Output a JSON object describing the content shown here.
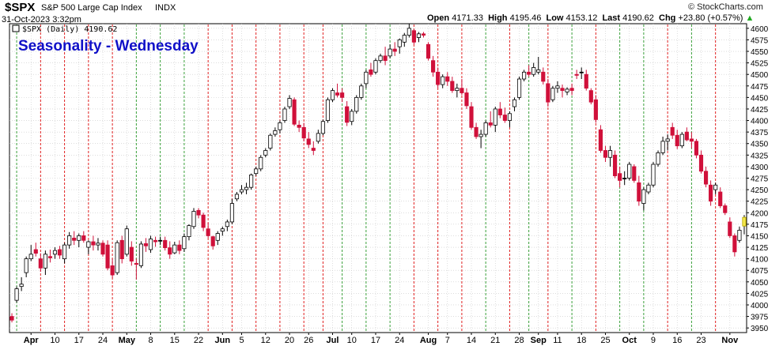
{
  "header": {
    "symbol": "$SPX",
    "name": "S&P 500 Large Cap Index",
    "exchange": "INDX",
    "timestamp": "31-Oct-2023 3:32pm",
    "open_label": "Open",
    "open": "4171.33",
    "high_label": "High",
    "high": "4195.46",
    "low_label": "Low",
    "low": "4153.12",
    "last_label": "Last",
    "last": "4190.62",
    "chg_label": "Chg",
    "chg": "+23.80 (+0.57%)",
    "up_arrow_icon": "triangle-up-icon",
    "watermark": "© StockCharts.com"
  },
  "legend_text": "$SPX (Daily) 4190.62",
  "chart_data": {
    "type": "candlestick",
    "title": "Seasonality - Wednesday",
    "ylim": [
      3940,
      4610
    ],
    "y_ticks": [
      3950,
      3975,
      4000,
      4025,
      4050,
      4075,
      4100,
      4125,
      4150,
      4175,
      4200,
      4225,
      4250,
      4275,
      4300,
      4325,
      4350,
      4375,
      4400,
      4425,
      4450,
      4475,
      4500,
      4525,
      4550,
      4575,
      4600
    ],
    "x_tick_labels": [
      {
        "i": 4,
        "label": "Apr",
        "bold": true
      },
      {
        "i": 9,
        "label": "10"
      },
      {
        "i": 14,
        "label": "17"
      },
      {
        "i": 19,
        "label": "24"
      },
      {
        "i": 24,
        "label": "May",
        "bold": true
      },
      {
        "i": 29,
        "label": "8"
      },
      {
        "i": 34,
        "label": "15"
      },
      {
        "i": 39,
        "label": "22"
      },
      {
        "i": 44,
        "label": "Jun",
        "bold": true
      },
      {
        "i": 48,
        "label": "5"
      },
      {
        "i": 53,
        "label": "12"
      },
      {
        "i": 58,
        "label": "20"
      },
      {
        "i": 62,
        "label": "26"
      },
      {
        "i": 67,
        "label": "Jul",
        "bold": true
      },
      {
        "i": 71,
        "label": "10"
      },
      {
        "i": 76,
        "label": "17"
      },
      {
        "i": 81,
        "label": "24"
      },
      {
        "i": 87,
        "label": "Aug",
        "bold": true
      },
      {
        "i": 91,
        "label": "7"
      },
      {
        "i": 96,
        "label": "14"
      },
      {
        "i": 101,
        "label": "21"
      },
      {
        "i": 106,
        "label": "28"
      },
      {
        "i": 110,
        "label": "Sep",
        "bold": true
      },
      {
        "i": 114,
        "label": "11"
      },
      {
        "i": 119,
        "label": "18"
      },
      {
        "i": 124,
        "label": "25"
      },
      {
        "i": 129,
        "label": "Oct",
        "bold": true
      },
      {
        "i": 134,
        "label": "9"
      },
      {
        "i": 139,
        "label": "16"
      },
      {
        "i": 144,
        "label": "23"
      },
      {
        "i": 150,
        "label": "Nov",
        "bold": true
      }
    ],
    "wednesday_lines": [
      {
        "i": 1,
        "c": "green"
      },
      {
        "i": 6,
        "c": "red"
      },
      {
        "i": 11,
        "c": "red"
      },
      {
        "i": 16,
        "c": "red"
      },
      {
        "i": 21,
        "c": "red"
      },
      {
        "i": 26,
        "c": "green"
      },
      {
        "i": 31,
        "c": "green"
      },
      {
        "i": 36,
        "c": "green"
      },
      {
        "i": 41,
        "c": "red"
      },
      {
        "i": 46,
        "c": "red"
      },
      {
        "i": 51,
        "c": "red"
      },
      {
        "i": 56,
        "c": "red"
      },
      {
        "i": 61,
        "c": "red"
      },
      {
        "i": 65,
        "c": "red"
      },
      {
        "i": 69,
        "c": "green"
      },
      {
        "i": 74,
        "c": "green"
      },
      {
        "i": 79,
        "c": "green"
      },
      {
        "i": 84,
        "c": "red"
      },
      {
        "i": 89,
        "c": "red"
      },
      {
        "i": 94,
        "c": "red"
      },
      {
        "i": 99,
        "c": "green"
      },
      {
        "i": 104,
        "c": "red"
      },
      {
        "i": 108,
        "c": "green"
      },
      {
        "i": 112,
        "c": "red"
      },
      {
        "i": 117,
        "c": "green"
      },
      {
        "i": 122,
        "c": "red"
      },
      {
        "i": 127,
        "c": "green"
      },
      {
        "i": 132,
        "c": "green"
      },
      {
        "i": 137,
        "c": "red"
      },
      {
        "i": 142,
        "c": "green"
      },
      {
        "i": 147,
        "c": "red"
      }
    ],
    "colors": {
      "up": "#ffffff",
      "down": "#d0103a",
      "flat": "#000000",
      "last": "#f2e64a",
      "line_green": "#3aa03a",
      "line_red": "#e02020",
      "title": "#1010c8",
      "grid": "#c8c8c8",
      "axis": "#000000"
    },
    "ohlc": [
      [
        3975,
        3982,
        3962,
        3967
      ],
      [
        4010,
        4040,
        4005,
        4035
      ],
      [
        4040,
        4060,
        4030,
        4045
      ],
      [
        4070,
        4105,
        4060,
        4100
      ],
      [
        4100,
        4130,
        4095,
        4110
      ],
      [
        4120,
        4135,
        4105,
        4112
      ],
      [
        4100,
        4112,
        4072,
        4080
      ],
      [
        4080,
        4118,
        4065,
        4110
      ],
      [
        4105,
        4120,
        4092,
        4102
      ],
      [
        4110,
        4125,
        4100,
        4118
      ],
      [
        4120,
        4128,
        4100,
        4108
      ],
      [
        4100,
        4135,
        4090,
        4130
      ],
      [
        4130,
        4158,
        4122,
        4150
      ],
      [
        4145,
        4160,
        4130,
        4140
      ],
      [
        4140,
        4155,
        4125,
        4150
      ],
      [
        4150,
        4160,
        4135,
        4140
      ],
      [
        4125,
        4140,
        4110,
        4137
      ],
      [
        4137,
        4150,
        4118,
        4130
      ],
      [
        4130,
        4145,
        4118,
        4134
      ],
      [
        4134,
        4140,
        4105,
        4110
      ],
      [
        4130,
        4140,
        4075,
        4080
      ],
      [
        4085,
        4100,
        4058,
        4065
      ],
      [
        4070,
        4140,
        4065,
        4135
      ],
      [
        4140,
        4150,
        4090,
        4100
      ],
      [
        4110,
        4172,
        4105,
        4165
      ],
      [
        4125,
        4138,
        4085,
        4095
      ],
      [
        4090,
        4100,
        4055,
        4088
      ],
      [
        4085,
        4138,
        4080,
        4132
      ],
      [
        4133,
        4145,
        4115,
        4128
      ],
      [
        4120,
        4150,
        4113,
        4143
      ],
      [
        4140,
        4148,
        4126,
        4137
      ],
      [
        4140,
        4148,
        4130,
        4140
      ],
      [
        4140,
        4148,
        4118,
        4124
      ],
      [
        4124,
        4138,
        4100,
        4110
      ],
      [
        4113,
        4137,
        4110,
        4130
      ],
      [
        4130,
        4140,
        4110,
        4118
      ],
      [
        4122,
        4155,
        4115,
        4148
      ],
      [
        4148,
        4175,
        4140,
        4172
      ],
      [
        4170,
        4210,
        4165,
        4203
      ],
      [
        4205,
        4210,
        4188,
        4195
      ],
      [
        4195,
        4200,
        4160,
        4168
      ],
      [
        4165,
        4178,
        4145,
        4150
      ],
      [
        4148,
        4150,
        4120,
        4128
      ],
      [
        4140,
        4160,
        4130,
        4155
      ],
      [
        4160,
        4170,
        4150,
        4165
      ],
      [
        4170,
        4185,
        4160,
        4180
      ],
      [
        4180,
        4230,
        4175,
        4220
      ],
      [
        4230,
        4245,
        4225,
        4240
      ],
      [
        4245,
        4260,
        4240,
        4250
      ],
      [
        4250,
        4265,
        4240,
        4255
      ],
      [
        4255,
        4285,
        4250,
        4282
      ],
      [
        4285,
        4300,
        4280,
        4295
      ],
      [
        4295,
        4325,
        4290,
        4320
      ],
      [
        4325,
        4340,
        4320,
        4335
      ],
      [
        4340,
        4372,
        4335,
        4368
      ],
      [
        4370,
        4385,
        4365,
        4378
      ],
      [
        4380,
        4400,
        4372,
        4395
      ],
      [
        4400,
        4430,
        4395,
        4425
      ],
      [
        4430,
        4455,
        4425,
        4448
      ],
      [
        4445,
        4450,
        4388,
        4392
      ],
      [
        4390,
        4400,
        4375,
        4385
      ],
      [
        4385,
        4395,
        4355,
        4362
      ],
      [
        4360,
        4375,
        4340,
        4348
      ],
      [
        4340,
        4355,
        4325,
        4335
      ],
      [
        4355,
        4380,
        4350,
        4372
      ],
      [
        4372,
        4402,
        4368,
        4398
      ],
      [
        4400,
        4450,
        4395,
        4445
      ],
      [
        4445,
        4470,
        4440,
        4465
      ],
      [
        4460,
        4480,
        4450,
        4455
      ],
      [
        4460,
        4470,
        4440,
        4450
      ],
      [
        4430,
        4442,
        4388,
        4396
      ],
      [
        4398,
        4425,
        4390,
        4420
      ],
      [
        4420,
        4455,
        4415,
        4450
      ],
      [
        4450,
        4480,
        4445,
        4475
      ],
      [
        4480,
        4510,
        4470,
        4505
      ],
      [
        4510,
        4525,
        4495,
        4500
      ],
      [
        4505,
        4535,
        4500,
        4530
      ],
      [
        4530,
        4545,
        4525,
        4540
      ],
      [
        4540,
        4560,
        4520,
        4530
      ],
      [
        4540,
        4565,
        4535,
        4555
      ],
      [
        4555,
        4570,
        4540,
        4550
      ],
      [
        4560,
        4578,
        4545,
        4575
      ],
      [
        4570,
        4590,
        4560,
        4585
      ],
      [
        4585,
        4610,
        4580,
        4600
      ],
      [
        4595,
        4598,
        4565,
        4570
      ],
      [
        4580,
        4592,
        4570,
        4588
      ],
      [
        4588,
        4592,
        4580,
        4585
      ],
      [
        4565,
        4570,
        4530,
        4535
      ],
      [
        4530,
        4540,
        4495,
        4505
      ],
      [
        4505,
        4515,
        4470,
        4478
      ],
      [
        4478,
        4500,
        4470,
        4495
      ],
      [
        4495,
        4505,
        4475,
        4485
      ],
      [
        4485,
        4495,
        4460,
        4465
      ],
      [
        4465,
        4480,
        4450,
        4470
      ],
      [
        4470,
        4490,
        4455,
        4460
      ],
      [
        4460,
        4470,
        4425,
        4432
      ],
      [
        4430,
        4440,
        4380,
        4385
      ],
      [
        4385,
        4395,
        4360,
        4365
      ],
      [
        4365,
        4380,
        4340,
        4370
      ],
      [
        4370,
        4400,
        4365,
        4395
      ],
      [
        4395,
        4420,
        4385,
        4390
      ],
      [
        4390,
        4430,
        4375,
        4425
      ],
      [
        4425,
        4440,
        4405,
        4412
      ],
      [
        4412,
        4428,
        4395,
        4400
      ],
      [
        4400,
        4420,
        4385,
        4415
      ],
      [
        4430,
        4450,
        4420,
        4445
      ],
      [
        4450,
        4495,
        4445,
        4490
      ],
      [
        4490,
        4510,
        4485,
        4505
      ],
      [
        4505,
        4520,
        4495,
        4500
      ],
      [
        4500,
        4525,
        4495,
        4515
      ],
      [
        4505,
        4538,
        4500,
        4510
      ],
      [
        4505,
        4515,
        4478,
        4485
      ],
      [
        4480,
        4490,
        4430,
        4440
      ],
      [
        4445,
        4475,
        4440,
        4470
      ],
      [
        4470,
        4485,
        4460,
        4475
      ],
      [
        4470,
        4478,
        4450,
        4465
      ],
      [
        4462,
        4472,
        4455,
        4468
      ],
      [
        4470,
        4480,
        4455,
        4465
      ],
      [
        4500,
        4510,
        4490,
        4498
      ],
      [
        4505,
        4515,
        4490,
        4505
      ],
      [
        4500,
        4510,
        4465,
        4470
      ],
      [
        4465,
        4470,
        4435,
        4440
      ],
      [
        4445,
        4455,
        4395,
        4402
      ],
      [
        4380,
        4390,
        4330,
        4335
      ],
      [
        4335,
        4345,
        4310,
        4320
      ],
      [
        4320,
        4345,
        4300,
        4335
      ],
      [
        4325,
        4335,
        4275,
        4280
      ],
      [
        4285,
        4300,
        4255,
        4270
      ],
      [
        4275,
        4290,
        4260,
        4275
      ],
      [
        4275,
        4310,
        4270,
        4305
      ],
      [
        4300,
        4305,
        4265,
        4270
      ],
      [
        4265,
        4280,
        4215,
        4225
      ],
      [
        4220,
        4255,
        4205,
        4250
      ],
      [
        4245,
        4265,
        4240,
        4260
      ],
      [
        4260,
        4310,
        4255,
        4305
      ],
      [
        4305,
        4335,
        4300,
        4330
      ],
      [
        4330,
        4365,
        4325,
        4355
      ],
      [
        4355,
        4370,
        4335,
        4360
      ],
      [
        4385,
        4395,
        4360,
        4368
      ],
      [
        4368,
        4380,
        4338,
        4345
      ],
      [
        4345,
        4375,
        4340,
        4370
      ],
      [
        4375,
        4385,
        4355,
        4358
      ],
      [
        4360,
        4375,
        4340,
        4355
      ],
      [
        4355,
        4360,
        4318,
        4325
      ],
      [
        4325,
        4335,
        4285,
        4290
      ],
      [
        4290,
        4300,
        4255,
        4262
      ],
      [
        4260,
        4270,
        4215,
        4225
      ],
      [
        4250,
        4265,
        4240,
        4260
      ],
      [
        4245,
        4255,
        4210,
        4215
      ],
      [
        4215,
        4220,
        4195,
        4200
      ],
      [
        4180,
        4190,
        4145,
        4150
      ],
      [
        4150,
        4155,
        4105,
        4115
      ],
      [
        4140,
        4170,
        4135,
        4162
      ],
      [
        4171,
        4195,
        4153,
        4190
      ]
    ]
  }
}
